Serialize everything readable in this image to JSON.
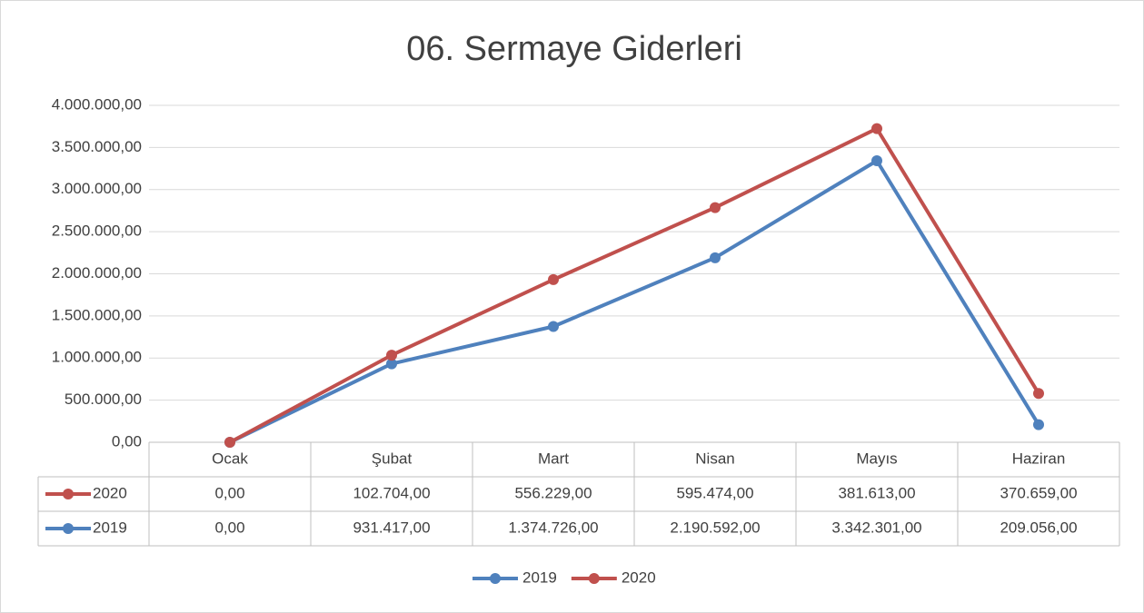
{
  "chart_data": {
    "type": "line",
    "title": "06. Sermaye Giderleri",
    "categories": [
      "Ocak",
      "Şubat",
      "Mart",
      "Nisan",
      "Mayıs",
      "Haziran"
    ],
    "stacked": true,
    "series": [
      {
        "name": "2019",
        "color": "#4f81bd",
        "values": [
          0,
          931417,
          1374726,
          2190592,
          3342301,
          209056
        ],
        "value_labels": [
          "0,00",
          "931.417,00",
          "1.374.726,00",
          "2.190.592,00",
          "3.342.301,00",
          "209.056,00"
        ]
      },
      {
        "name": "2020",
        "color": "#c0504d",
        "values": [
          0,
          102704,
          556229,
          595474,
          381613,
          370659
        ],
        "value_labels": [
          "0,00",
          "102.704,00",
          "556.229,00",
          "595.474,00",
          "381.613,00",
          "370.659,00"
        ]
      }
    ],
    "ylim": [
      0,
      4000000
    ],
    "yticks": [
      {
        "value": 0,
        "label": "0,00"
      },
      {
        "value": 500000,
        "label": "500.000,00"
      },
      {
        "value": 1000000,
        "label": "1.000.000,00"
      },
      {
        "value": 1500000,
        "label": "1.500.000,00"
      },
      {
        "value": 2000000,
        "label": "2.000.000,00"
      },
      {
        "value": 2500000,
        "label": "2.500.000,00"
      },
      {
        "value": 3000000,
        "label": "3.000.000,00"
      },
      {
        "value": 3500000,
        "label": "3.500.000,00"
      },
      {
        "value": 4000000,
        "label": "4.000.000,00"
      }
    ],
    "grid": true,
    "legend": "bottom",
    "data_table": true
  }
}
